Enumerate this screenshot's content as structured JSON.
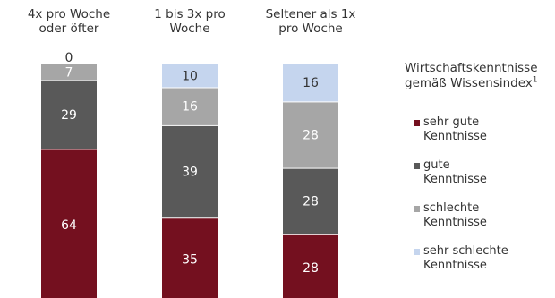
{
  "chart_data": {
    "type": "bar",
    "stacked": true,
    "orientation": "vertical",
    "categories": [
      "4x pro Woche\noder öfter",
      "1 bis 3x pro\nWoche",
      "Seltener als 1x\npro Woche"
    ],
    "series": [
      {
        "name": "sehr gute\nKenntnisse",
        "values": [
          64,
          35,
          28
        ],
        "color": "#74101f"
      },
      {
        "name": "gute\nKenntnisse",
        "values": [
          29,
          39,
          28
        ],
        "color": "#595959"
      },
      {
        "name": "schlechte\nKenntnisse",
        "values": [
          7,
          16,
          28
        ],
        "color": "#a6a6a6"
      },
      {
        "name": "sehr schlechte\nKenntnisse",
        "values": [
          0,
          10,
          16
        ],
        "color": "#c5d5ee"
      }
    ],
    "data_labels": [
      [
        "64",
        "35",
        "28"
      ],
      [
        "29",
        "39",
        "28"
      ],
      [
        "7",
        "16",
        "28"
      ],
      [
        "0",
        "10",
        "16"
      ]
    ],
    "legend": {
      "title": "Wirtschaftskenntnisse gemäß Wissensindex",
      "title_footnote": "1",
      "position": "right"
    }
  }
}
